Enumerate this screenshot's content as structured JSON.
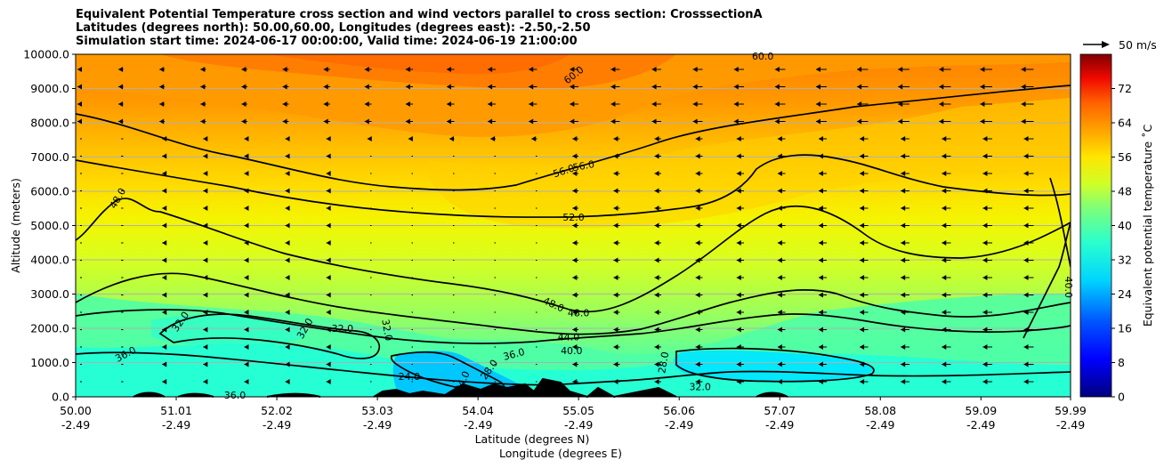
{
  "chart_data": {
    "type": "heatmap",
    "title_lines": [
      "Equivalent Potential Temperature cross section and wind vectors parallel to cross section: CrosssectionA",
      "Latitudes (degrees north): 50.00,60.00, Longitudes (degrees east): -2.50,-2.50",
      "Simulation start time: 2024-06-17 00:00:00, Valid time: 2024-06-19 21:00:00"
    ],
    "ylabel": "Altitude (meters)",
    "xlabel_lat": "Latitude (degrees N)",
    "xlabel_lon": "Longitude (degrees E)",
    "ylim": [
      0,
      10000
    ],
    "y_ticks": [
      "0.0",
      "1000.0",
      "2000.0",
      "3000.0",
      "4000.0",
      "5000.0",
      "6000.0",
      "7000.0",
      "8000.0",
      "9000.0",
      "10000.0"
    ],
    "y_tick_values": [
      0,
      1000,
      2000,
      3000,
      4000,
      5000,
      6000,
      7000,
      8000,
      9000,
      10000
    ],
    "x_tick_lat": [
      "50.00",
      "51.01",
      "52.02",
      "53.03",
      "54.04",
      "55.05",
      "56.06",
      "57.07",
      "58.08",
      "59.09",
      "59.99"
    ],
    "x_tick_lon": [
      "-2.49",
      "-2.49",
      "-2.49",
      "-2.49",
      "-2.49",
      "-2.49",
      "-2.49",
      "-2.49",
      "-2.49",
      "-2.49",
      "-2.49"
    ],
    "x_tick_values": [
      50.0,
      51.01,
      52.02,
      53.03,
      54.04,
      55.05,
      56.06,
      57.07,
      58.08,
      59.09,
      59.99
    ],
    "xlim": [
      50.0,
      59.99
    ],
    "colorbar": {
      "label": "Equivalent potential temperature ˚C",
      "range": [
        0,
        80
      ],
      "ticks": [
        "0",
        "8",
        "16",
        "24",
        "32",
        "40",
        "48",
        "56",
        "64",
        "72"
      ],
      "tick_values": [
        0,
        8,
        16,
        24,
        32,
        40,
        48,
        56,
        64,
        72
      ]
    },
    "wind_key": "50 m/s",
    "contour_labels": [
      {
        "text": "60.0",
        "lat": 55.0,
        "alt": 9400,
        "angle": -38
      },
      {
        "text": "60.0",
        "lat": 56.9,
        "alt": 9950,
        "angle": 0
      },
      {
        "text": "56.0",
        "lat": 54.9,
        "alt": 6600,
        "angle": -18
      },
      {
        "text": "56.0",
        "lat": 55.1,
        "alt": 6750,
        "angle": -10
      },
      {
        "text": "52.0",
        "lat": 55.0,
        "alt": 5250,
        "angle": 0
      },
      {
        "text": "48.0",
        "lat": 50.42,
        "alt": 5800,
        "angle": -60
      },
      {
        "text": "48.0",
        "lat": 54.8,
        "alt": 2700,
        "angle": 25
      },
      {
        "text": "48.0",
        "lat": 55.05,
        "alt": 2450,
        "angle": 0
      },
      {
        "text": "44.0",
        "lat": 54.95,
        "alt": 1750,
        "angle": 0
      },
      {
        "text": "40.0",
        "lat": 54.98,
        "alt": 1350,
        "angle": 0
      },
      {
        "text": "40.0",
        "lat": 59.97,
        "alt": 3200,
        "angle": 90
      },
      {
        "text": "36.0",
        "lat": 50.5,
        "alt": 1250,
        "angle": -28
      },
      {
        "text": "36.0",
        "lat": 54.4,
        "alt": 1250,
        "angle": -15
      },
      {
        "text": "36.0",
        "lat": 51.6,
        "alt": 50,
        "angle": 0
      },
      {
        "text": "32.0",
        "lat": 51.05,
        "alt": 2200,
        "angle": -55
      },
      {
        "text": "32.0",
        "lat": 52.3,
        "alt": 2000,
        "angle": -60
      },
      {
        "text": "32.0",
        "lat": 52.68,
        "alt": 2000,
        "angle": 0
      },
      {
        "text": "32.0",
        "lat": 53.13,
        "alt": 1950,
        "angle": 80
      },
      {
        "text": "32.0",
        "lat": 56.27,
        "alt": 300,
        "angle": 0
      },
      {
        "text": "28.0",
        "lat": 54.15,
        "alt": 800,
        "angle": -55
      },
      {
        "text": "28.0",
        "lat": 55.9,
        "alt": 1000,
        "angle": -80
      },
      {
        "text": "24.0",
        "lat": 53.35,
        "alt": 600,
        "angle": 0
      },
      {
        "text": "24.0",
        "lat": 53.88,
        "alt": 450,
        "angle": -65
      }
    ]
  }
}
